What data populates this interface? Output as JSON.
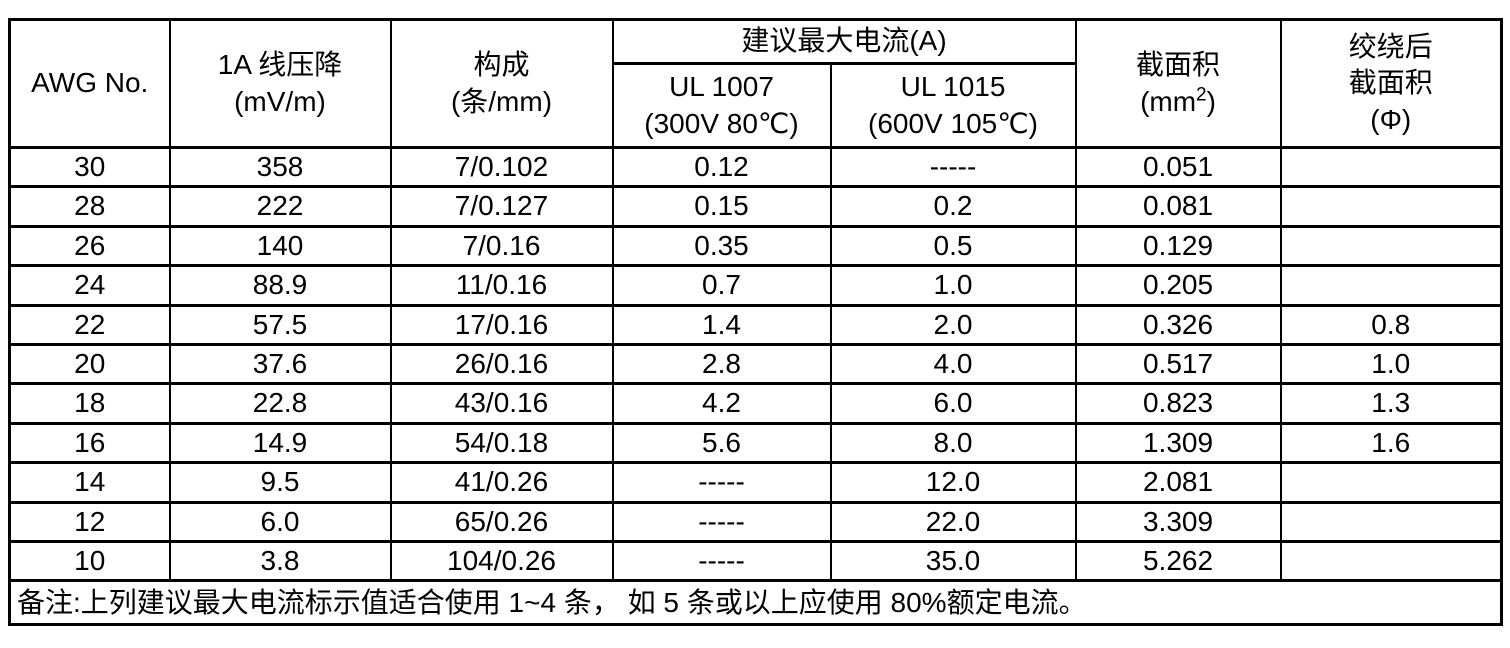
{
  "table": {
    "header": {
      "awg": "AWG No.",
      "voltage_drop_line1": "1A 线压降",
      "voltage_drop_line2": "(mV/m)",
      "construction_line1": "构成",
      "construction_line2": "(条/mm)",
      "max_current_group": "建议最大电流(A)",
      "ul1007_line1": "UL 1007",
      "ul1007_line2": "(300V 80℃)",
      "ul1015_line1": "UL 1015",
      "ul1015_line2": "(600V 105℃)",
      "cross_section_line1": "截面积",
      "cross_section_pre": "(mm",
      "cross_section_sup": "2",
      "cross_section_post": ")",
      "twisted_line1": "绞绕后",
      "twisted_line2": "截面积",
      "twisted_line3": "(Φ)"
    },
    "rows": [
      [
        "30",
        "358",
        "7/0.102",
        "0.12",
        "-----",
        "0.051",
        ""
      ],
      [
        "28",
        "222",
        "7/0.127",
        "0.15",
        "0.2",
        "0.081",
        ""
      ],
      [
        "26",
        "140",
        "7/0.16",
        "0.35",
        "0.5",
        "0.129",
        ""
      ],
      [
        "24",
        "88.9",
        "11/0.16",
        "0.7",
        "1.0",
        "0.205",
        ""
      ],
      [
        "22",
        "57.5",
        "17/0.16",
        "1.4",
        "2.0",
        "0.326",
        "0.8"
      ],
      [
        "20",
        "37.6",
        "26/0.16",
        "2.8",
        "4.0",
        "0.517",
        "1.0"
      ],
      [
        "18",
        "22.8",
        "43/0.16",
        "4.2",
        "6.0",
        "0.823",
        "1.3"
      ],
      [
        "16",
        "14.9",
        "54/0.18",
        "5.6",
        "8.0",
        "1.309",
        "1.6"
      ],
      [
        "14",
        "9.5",
        "41/0.26",
        "-----",
        "12.0",
        "2.081",
        ""
      ],
      [
        "12",
        "6.0",
        "65/0.26",
        "-----",
        "22.0",
        "3.309",
        ""
      ],
      [
        "10",
        "3.8",
        "104/0.26",
        "-----",
        "35.0",
        "5.262",
        ""
      ]
    ],
    "note": "备注:上列建议最大电流标示值适合使用 1~4 条， 如 5 条或以上应使用 80%额定电流。"
  },
  "colors": {
    "border": "#000000",
    "background": "#ffffff",
    "text": "#000000"
  }
}
